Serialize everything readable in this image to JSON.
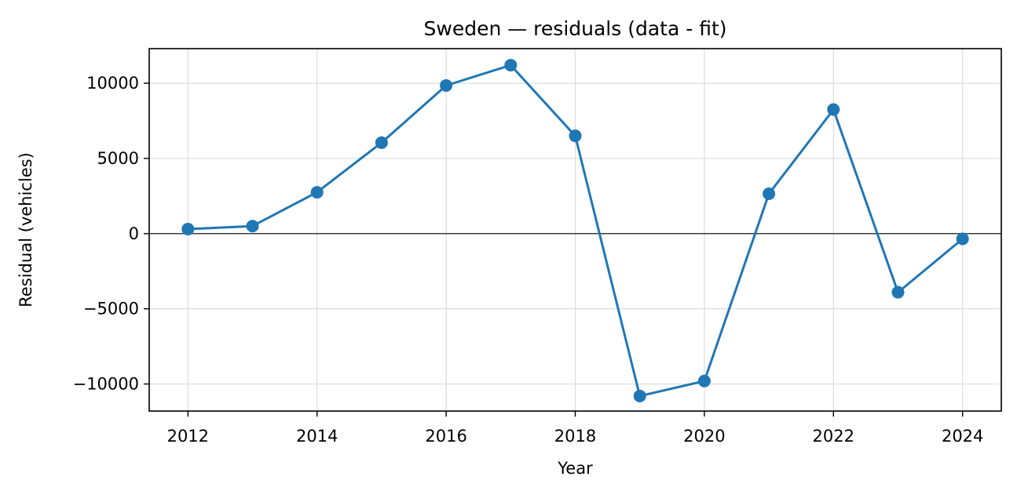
{
  "chart_data": {
    "type": "line",
    "title": "Sweden — residuals (data - fit)",
    "xlabel": "Year",
    "ylabel": "Residual (vehicles)",
    "xlim": [
      2011.4,
      2024.6
    ],
    "ylim": [
      -11800,
      12300
    ],
    "x_ticks": [
      2012,
      2014,
      2016,
      2018,
      2020,
      2022,
      2024
    ],
    "x_tick_labels": [
      "2012",
      "2014",
      "2016",
      "2018",
      "2020",
      "2022",
      "2024"
    ],
    "y_ticks": [
      -10000,
      -5000,
      0,
      5000,
      10000
    ],
    "y_tick_labels": [
      "−10000",
      "−5000",
      "0",
      "5000",
      "10000"
    ],
    "grid": true,
    "zero_line": true,
    "series": [
      {
        "name": "residual",
        "color": "#1f77b4",
        "marker": "circle",
        "x": [
          2012,
          2013,
          2014,
          2015,
          2016,
          2017,
          2018,
          2019,
          2020,
          2021,
          2022,
          2023,
          2024
        ],
        "values": [
          300,
          500,
          2750,
          6050,
          9850,
          11200,
          6500,
          -10800,
          -9800,
          2650,
          8250,
          -3900,
          -350
        ]
      }
    ]
  }
}
